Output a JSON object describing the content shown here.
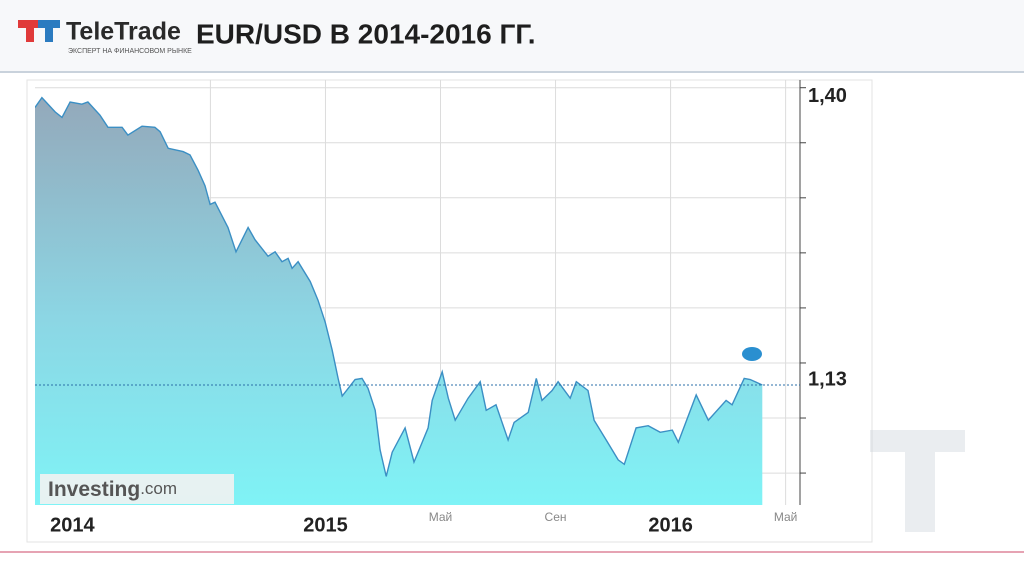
{
  "header": {
    "logo": "TeleTrade",
    "tagline": "ЭКСПЕРТ НА ФИНАНСОВОМ РЫНКЕ",
    "title": "EUR/USD В 2014-2016 ГГ."
  },
  "chart_data": {
    "type": "area",
    "source": {
      "name": "Investing",
      "domain": ".com"
    },
    "x": [
      1.9,
      2.14,
      2.6,
      2.84,
      3.12,
      3.53,
      3.74,
      4.16,
      4.44,
      4.93,
      5.13,
      5.62,
      6.07,
      6.25,
      6.53,
      7.05,
      7.29,
      7.57,
      7.81,
      7.99,
      8.16,
      8.61,
      8.89,
      9.31,
      9.55,
      10.0,
      10.25,
      10.49,
      10.7,
      10.84,
      11.05,
      11.47,
      11.74,
      11.99,
      12.23,
      12.44,
      12.58,
      13.03,
      13.27,
      13.48,
      13.73,
      13.9,
      14.11,
      14.32,
      14.77,
      15.08,
      15.57,
      15.71,
      16.06,
      16.27,
      16.51,
      16.96,
      17.38,
      17.59,
      17.93,
      18.35,
      18.56,
      19.05,
      19.33,
      19.53,
      19.88,
      20.09,
      20.51,
      20.72,
      21.13,
      21.34,
      21.76,
      22.18,
      22.39,
      22.8,
      23.22,
      23.64,
      24.06,
      24.27,
      24.89,
      25.31,
      25.93,
      26.14,
      26.56,
      26.77,
      27.19
    ],
    "values": [
      1.382,
      1.391,
      1.378,
      1.373,
      1.387,
      1.385,
      1.387,
      1.375,
      1.364,
      1.364,
      1.357,
      1.365,
      1.364,
      1.36,
      1.345,
      1.342,
      1.339,
      1.325,
      1.311,
      1.294,
      1.296,
      1.273,
      1.251,
      1.273,
      1.262,
      1.247,
      1.251,
      1.242,
      1.245,
      1.236,
      1.242,
      1.224,
      1.207,
      1.187,
      1.162,
      1.136,
      1.12,
      1.135,
      1.136,
      1.127,
      1.107,
      1.071,
      1.047,
      1.069,
      1.091,
      1.06,
      1.091,
      1.116,
      1.142,
      1.118,
      1.098,
      1.118,
      1.133,
      1.107,
      1.112,
      1.08,
      1.096,
      1.105,
      1.136,
      1.116,
      1.125,
      1.133,
      1.118,
      1.133,
      1.125,
      1.098,
      1.08,
      1.062,
      1.058,
      1.091,
      1.093,
      1.087,
      1.089,
      1.078,
      1.121,
      1.098,
      1.116,
      1.112,
      1.136,
      1.135,
      1.13
    ],
    "color": "#3b8fc4",
    "xlim": [
      1.9,
      28.5
    ],
    "ylim": [
      1.021,
      1.407
    ],
    "yticks": [
      {
        "value": 1.4,
        "label": "1,40"
      }
    ],
    "ygrid": [
      1.4,
      1.35,
      1.3,
      1.25,
      1.2,
      1.15,
      1.1,
      1.05
    ],
    "current_price": {
      "value": 1.13,
      "label": "1,13"
    },
    "xticks": [
      {
        "value": 3.2,
        "label": "2014"
      },
      {
        "value": 12,
        "label": "2015"
      },
      {
        "value": 24,
        "label": "2016"
      }
    ],
    "xticks_minor": [
      {
        "value": 16,
        "label": "Май"
      },
      {
        "value": 20,
        "label": "Сен"
      },
      {
        "value": 28,
        "label": "Май"
      }
    ],
    "xgrid": [
      8,
      12,
      16,
      20,
      24,
      28
    ],
    "grid": true
  }
}
